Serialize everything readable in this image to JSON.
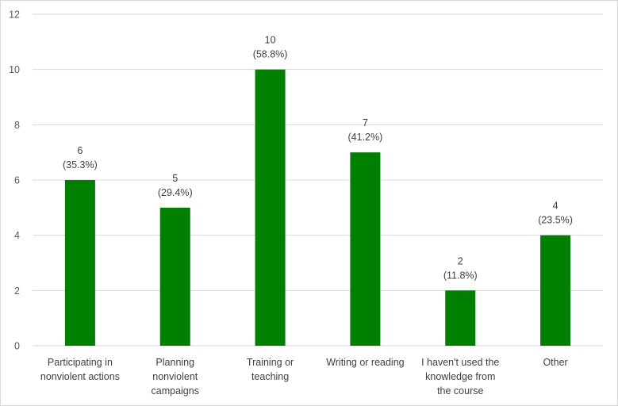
{
  "chart_data": {
    "type": "bar",
    "categories": [
      [
        "Participating in",
        "nonviolent actions"
      ],
      [
        "Planning",
        "nonviolent",
        "campaigns"
      ],
      [
        "Training or",
        "teaching"
      ],
      [
        "Writing or reading"
      ],
      [
        "I haven't used the",
        "knowledge from",
        "the course"
      ],
      [
        "Other"
      ]
    ],
    "values": [
      6,
      5,
      10,
      7,
      2,
      4
    ],
    "percent_labels": [
      "(35.3%)",
      "(29.4%)",
      "(58.8%)",
      "(41.2%)",
      "(11.8%)",
      "(23.5%)"
    ],
    "ylim": [
      0,
      12
    ],
    "yticks": [
      0,
      2,
      4,
      6,
      8,
      10,
      12
    ],
    "grid": true,
    "bar_color": "#008000"
  }
}
